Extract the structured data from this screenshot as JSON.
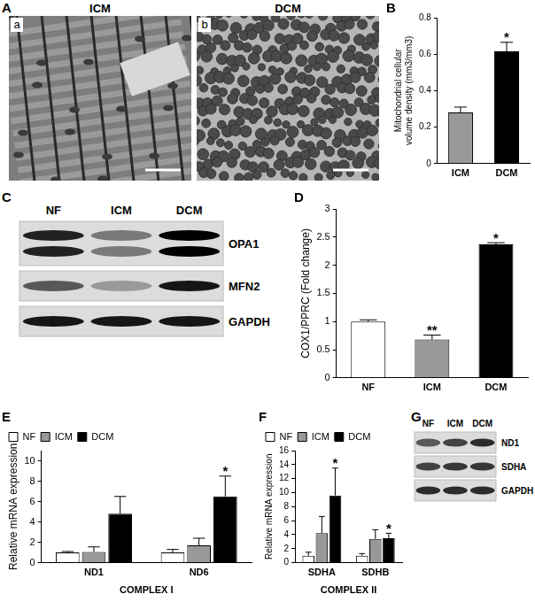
{
  "micrograph": {
    "panel": "A",
    "images": [
      {
        "label": "a",
        "title": "ICM"
      },
      {
        "label": "b",
        "title": "DCM"
      }
    ]
  },
  "chart_data": [
    {
      "panel": "B",
      "type": "bar",
      "categories": [
        "ICM",
        "DCM"
      ],
      "values": [
        0.28,
        0.615
      ],
      "errors": [
        0.03,
        0.05
      ],
      "significance": [
        null,
        "*"
      ],
      "colors": [
        "#999999",
        "#000000"
      ],
      "y_label": [
        "Mitochondrial cellular",
        "volume density (mm3/mm3)"
      ],
      "ylim": [
        0,
        0.8
      ],
      "yticks": [
        0,
        0.2,
        0.4,
        0.6,
        0.8
      ],
      "grid": false
    },
    {
      "panel": "D",
      "type": "bar",
      "categories": [
        "NF",
        "ICM",
        "DCM"
      ],
      "values": [
        1.0,
        0.68,
        2.37
      ],
      "errors": [
        0.03,
        0.08,
        0.03
      ],
      "significance": [
        null,
        "**",
        "*"
      ],
      "colors": [
        "#ffffff",
        "#999999",
        "#000000"
      ],
      "y_label": "COX1/PPRC (Fold change)",
      "ylim": [
        0,
        3
      ],
      "yticks": [
        0,
        0.5,
        1,
        1.5,
        2,
        2.5,
        3
      ],
      "grid": false
    },
    {
      "panel": "E",
      "type": "bar",
      "categories": [
        "ND1",
        "ND6"
      ],
      "x_label": "COMPLEX I",
      "y_label": "Relative mRNA expression",
      "series": [
        {
          "name": "NF",
          "color": "#ffffff",
          "values": [
            1.0,
            1.0
          ],
          "errors": [
            0.1,
            0.3
          ],
          "significance": [
            null,
            null
          ]
        },
        {
          "name": "ICM",
          "color": "#999999",
          "values": [
            1.05,
            1.7
          ],
          "errors": [
            0.5,
            0.7
          ],
          "significance": [
            null,
            null
          ]
        },
        {
          "name": "DCM",
          "color": "#000000",
          "values": [
            4.8,
            6.5
          ],
          "errors": [
            1.7,
            2.0
          ],
          "significance": [
            null,
            "*"
          ]
        }
      ],
      "ylim": [
        0,
        11
      ],
      "yticks": [
        0,
        2,
        4,
        6,
        8,
        10
      ],
      "legend": "top-left",
      "grid": false
    },
    {
      "panel": "F",
      "type": "bar",
      "categories": [
        "SDHA",
        "SDHB"
      ],
      "x_label": "COMPLEX II",
      "y_label": "Relative mRNA expression",
      "series": [
        {
          "name": "NF",
          "color": "#ffffff",
          "values": [
            1.0,
            1.0
          ],
          "errors": [
            0.5,
            0.3
          ],
          "significance": [
            null,
            null
          ]
        },
        {
          "name": "ICM",
          "color": "#999999",
          "values": [
            4.2,
            3.4
          ],
          "errors": [
            2.4,
            1.3
          ],
          "significance": [
            null,
            null
          ]
        },
        {
          "name": "DCM",
          "color": "#000000",
          "values": [
            9.6,
            3.5
          ],
          "errors": [
            3.9,
            0.7
          ],
          "significance": [
            "*",
            "*"
          ]
        }
      ],
      "ylim": [
        0,
        16
      ],
      "yticks": [
        0,
        2,
        4,
        6,
        8,
        10,
        12,
        14,
        16
      ],
      "legend": "top-left",
      "grid": false
    }
  ],
  "blots": [
    {
      "panel": "C",
      "lanes": [
        "NF",
        "ICM",
        "DCM"
      ],
      "rows": [
        {
          "label": "OPA1",
          "intensity": [
            0.85,
            0.45,
            1.0
          ]
        },
        {
          "label": "MFN2",
          "intensity": [
            0.6,
            0.3,
            0.9
          ]
        },
        {
          "label": "GAPDH",
          "intensity": [
            0.9,
            0.9,
            0.9
          ]
        }
      ]
    },
    {
      "panel": "G",
      "lanes": [
        "NF",
        "ICM",
        "DCM"
      ],
      "rows": [
        {
          "label": "ND1",
          "intensity": [
            0.6,
            0.7,
            0.8
          ]
        },
        {
          "label": "SDHA",
          "intensity": [
            0.7,
            0.75,
            0.75
          ]
        },
        {
          "label": "GAPDH",
          "intensity": [
            0.8,
            0.8,
            0.8
          ]
        }
      ]
    }
  ]
}
